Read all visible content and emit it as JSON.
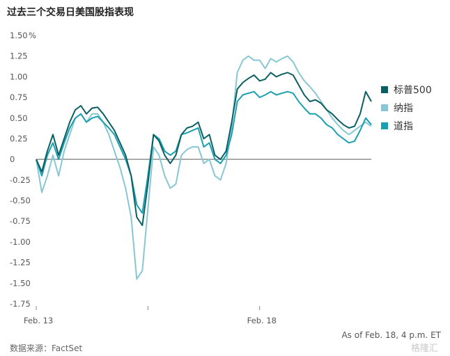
{
  "chart_data": {
    "type": "line",
    "title": "过去三个交易日美国股指表现",
    "unit": "%",
    "yticks": [
      "1.50",
      "1.25",
      "1.00",
      "0.75",
      "0.50",
      "0.25",
      "0",
      "-0.25",
      "-0.50",
      "-0.75",
      "-1.00",
      "-1.25",
      "-1.50",
      "-1.75"
    ],
    "ylim": [
      -1.75,
      1.5
    ],
    "xlim": [
      0,
      3
    ],
    "x_ticks": [
      {
        "x": 0,
        "label": "Feb. 13"
      },
      {
        "x": 1,
        "label": ""
      },
      {
        "x": 2,
        "label": "Feb. 18"
      }
    ],
    "note": "As of Feb. 18, 4 p.m. ET",
    "source": "数据来源：FactSet",
    "watermark": "格隆汇",
    "series": [
      {
        "name": "标普500",
        "color": "#0b5f63",
        "x": [
          0,
          0.05,
          0.1,
          0.15,
          0.2,
          0.25,
          0.3,
          0.35,
          0.4,
          0.45,
          0.5,
          0.55,
          0.6,
          0.65,
          0.7,
          0.75,
          0.8,
          0.85,
          0.9,
          0.95,
          1.0,
          1.05,
          1.1,
          1.15,
          1.2,
          1.25,
          1.3,
          1.35,
          1.4,
          1.45,
          1.5,
          1.55,
          1.6,
          1.65,
          1.7,
          1.75,
          1.8,
          1.85,
          1.9,
          1.95,
          2.0,
          2.05,
          2.1,
          2.15,
          2.2,
          2.25,
          2.3,
          2.35,
          2.4,
          2.45,
          2.5,
          2.55,
          2.6,
          2.65,
          2.7,
          2.75,
          2.8,
          2.85,
          2.9,
          2.95,
          3.0
        ],
        "values": [
          0.0,
          -0.15,
          0.1,
          0.3,
          0.05,
          0.25,
          0.45,
          0.6,
          0.65,
          0.55,
          0.62,
          0.63,
          0.55,
          0.45,
          0.35,
          0.2,
          0.05,
          -0.2,
          -0.7,
          -0.8,
          -0.3,
          0.3,
          0.22,
          0.05,
          -0.05,
          0.05,
          0.3,
          0.38,
          0.4,
          0.45,
          0.25,
          0.3,
          0.05,
          0.0,
          0.1,
          0.45,
          0.85,
          0.93,
          0.98,
          1.02,
          0.95,
          0.97,
          1.05,
          1.0,
          1.03,
          1.05,
          1.02,
          0.9,
          0.78,
          0.7,
          0.72,
          0.68,
          0.6,
          0.55,
          0.48,
          0.42,
          0.38,
          0.4,
          0.55,
          0.82,
          0.7
        ]
      },
      {
        "name": "纳指",
        "color": "#86c7d3",
        "x": [
          0,
          0.05,
          0.1,
          0.15,
          0.2,
          0.25,
          0.3,
          0.35,
          0.4,
          0.45,
          0.5,
          0.55,
          0.6,
          0.65,
          0.7,
          0.75,
          0.8,
          0.85,
          0.9,
          0.95,
          1.0,
          1.05,
          1.1,
          1.15,
          1.2,
          1.25,
          1.3,
          1.35,
          1.4,
          1.45,
          1.5,
          1.55,
          1.6,
          1.65,
          1.7,
          1.75,
          1.8,
          1.85,
          1.9,
          1.95,
          2.0,
          2.05,
          2.1,
          2.15,
          2.2,
          2.25,
          2.3,
          2.35,
          2.4,
          2.45,
          2.5,
          2.55,
          2.6,
          2.65,
          2.7,
          2.75,
          2.8,
          2.85,
          2.9,
          2.95,
          3.0
        ],
        "values": [
          0.0,
          -0.4,
          -0.2,
          0.05,
          -0.2,
          0.1,
          0.3,
          0.5,
          0.55,
          0.45,
          0.55,
          0.55,
          0.45,
          0.3,
          0.1,
          -0.1,
          -0.35,
          -0.7,
          -1.45,
          -1.35,
          -0.6,
          0.15,
          0.05,
          -0.2,
          -0.35,
          -0.3,
          0.05,
          0.12,
          0.15,
          0.15,
          -0.05,
          0.0,
          -0.2,
          -0.25,
          -0.05,
          0.4,
          1.05,
          1.2,
          1.25,
          1.2,
          1.2,
          1.1,
          1.22,
          1.18,
          1.22,
          1.25,
          1.18,
          1.05,
          0.95,
          0.88,
          0.8,
          0.7,
          0.6,
          0.5,
          0.42,
          0.35,
          0.3,
          0.35,
          0.4,
          0.45,
          0.4
        ]
      },
      {
        "name": "道指",
        "color": "#1a9fb0",
        "x": [
          0,
          0.05,
          0.1,
          0.15,
          0.2,
          0.25,
          0.3,
          0.35,
          0.4,
          0.45,
          0.5,
          0.55,
          0.6,
          0.65,
          0.7,
          0.75,
          0.8,
          0.85,
          0.9,
          0.95,
          1.0,
          1.05,
          1.1,
          1.15,
          1.2,
          1.25,
          1.3,
          1.35,
          1.4,
          1.45,
          1.5,
          1.55,
          1.6,
          1.65,
          1.7,
          1.75,
          1.8,
          1.85,
          1.9,
          1.95,
          2.0,
          2.05,
          2.1,
          2.15,
          2.2,
          2.25,
          2.3,
          2.35,
          2.4,
          2.45,
          2.5,
          2.55,
          2.6,
          2.65,
          2.7,
          2.75,
          2.8,
          2.85,
          2.9,
          2.95,
          3.0
        ],
        "values": [
          0.0,
          -0.2,
          0.05,
          0.2,
          0.0,
          0.2,
          0.38,
          0.5,
          0.55,
          0.45,
          0.5,
          0.52,
          0.45,
          0.38,
          0.3,
          0.15,
          0.0,
          -0.2,
          -0.55,
          -0.65,
          -0.2,
          0.3,
          0.25,
          0.1,
          0.05,
          0.1,
          0.3,
          0.32,
          0.35,
          0.38,
          0.15,
          0.2,
          0.0,
          -0.05,
          0.05,
          0.3,
          0.7,
          0.78,
          0.8,
          0.82,
          0.75,
          0.78,
          0.82,
          0.78,
          0.8,
          0.82,
          0.8,
          0.7,
          0.62,
          0.55,
          0.55,
          0.5,
          0.42,
          0.38,
          0.3,
          0.25,
          0.2,
          0.22,
          0.35,
          0.5,
          0.42
        ]
      }
    ]
  }
}
